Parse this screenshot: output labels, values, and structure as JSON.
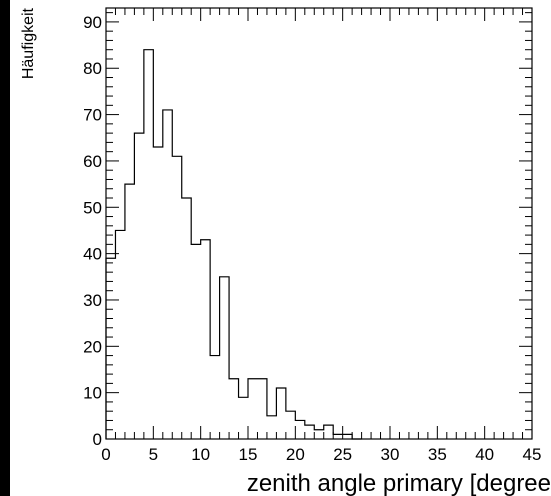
{
  "chart_data": {
    "type": "histogram",
    "title": "",
    "xlabel": "zenith angle primary [degree",
    "ylabel": "Häufigkeit",
    "xlim": [
      0,
      45
    ],
    "ylim": [
      0,
      93
    ],
    "x_ticks": [
      0,
      5,
      10,
      15,
      20,
      25,
      30,
      35,
      40,
      45
    ],
    "y_ticks": [
      0,
      10,
      20,
      30,
      40,
      50,
      60,
      70,
      80,
      90
    ],
    "grid": false,
    "legend": "none",
    "bin_edges": [
      0,
      1,
      2,
      3,
      4,
      5,
      6,
      7,
      8,
      9,
      10,
      11,
      12,
      13,
      14,
      15,
      16,
      17,
      18,
      19,
      20,
      21,
      22,
      23,
      24,
      25,
      26,
      27
    ],
    "values": [
      39,
      45,
      55,
      66,
      84,
      63,
      71,
      61,
      52,
      42,
      43,
      18,
      35,
      13,
      9,
      13,
      13,
      5,
      11,
      6,
      4,
      3,
      2,
      3,
      1,
      1,
      0
    ]
  },
  "colors": {
    "background": "#ffffff",
    "frame": "#000000",
    "line": "#000000",
    "outside": "#000000"
  }
}
